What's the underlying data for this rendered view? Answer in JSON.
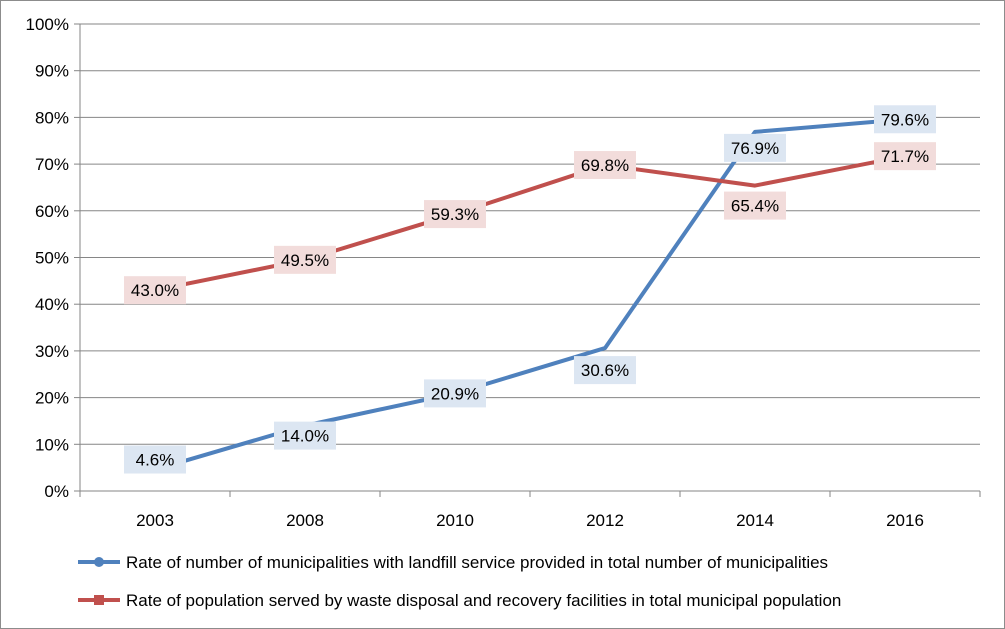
{
  "chart_data": {
    "type": "line",
    "categories": [
      "2003",
      "2008",
      "2010",
      "2012",
      "2014",
      "2016"
    ],
    "ylim": [
      0,
      100
    ],
    "yticks": [
      "0%",
      "10%",
      "20%",
      "30%",
      "40%",
      "50%",
      "60%",
      "70%",
      "80%",
      "90%",
      "100%"
    ],
    "grid": true,
    "legend_position": "bottom",
    "series": [
      {
        "name": "Rate of number of municipalities with landfill service provided in total number of municipalities",
        "values": [
          4.6,
          14.0,
          20.9,
          30.6,
          76.9,
          79.6
        ],
        "labels": [
          "4.6%",
          "14.0%",
          "20.9%",
          "30.6%",
          "76.9%",
          "79.6%"
        ],
        "color": "#4f81bd",
        "label_bg": "#dce6f2",
        "marker": "circle"
      },
      {
        "name": "Rate of population served by waste disposal and recovery facilities in total municipal population",
        "values": [
          43.0,
          49.5,
          59.3,
          69.8,
          65.4,
          71.7
        ],
        "labels": [
          "43.0%",
          "49.5%",
          "59.3%",
          "69.8%",
          "65.4%",
          "71.7%"
        ],
        "color": "#c0504d",
        "label_bg": "#f2dcdb",
        "marker": "square"
      }
    ]
  }
}
